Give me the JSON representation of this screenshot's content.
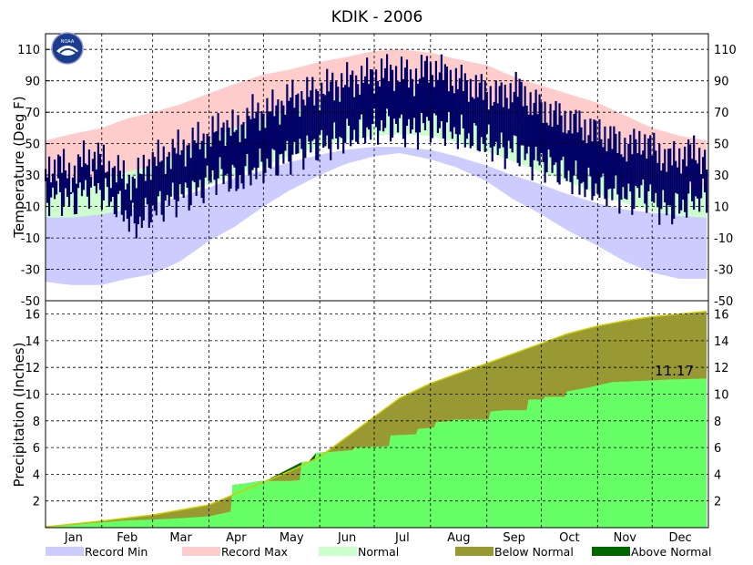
{
  "chart_data": [
    {
      "type": "bar",
      "title": "KDIK - 2006",
      "ylabel": "Temperature (Deg F)",
      "ylim": [
        -50,
        120
      ],
      "yticks": [
        -50,
        -30,
        -10,
        10,
        30,
        50,
        70,
        90,
        110
      ],
      "months": [
        "Jan",
        "Feb",
        "Mar",
        "Apr",
        "May",
        "Jun",
        "Jul",
        "Aug",
        "Sep",
        "Oct",
        "Nov",
        "Dec"
      ],
      "month_start_days": [
        1,
        32,
        60,
        91,
        121,
        152,
        182,
        213,
        244,
        274,
        305,
        335
      ],
      "series": [
        {
          "name": "Record Min",
          "color": "#ccccff",
          "x": [
            1,
            15,
            32,
            46,
            60,
            75,
            91,
            105,
            121,
            135,
            152,
            166,
            182,
            196,
            213,
            227,
            244,
            258,
            274,
            288,
            305,
            320,
            335,
            350,
            365
          ],
          "low": [
            -38,
            -40,
            -40,
            -36,
            -33,
            -25,
            -12,
            -3,
            10,
            20,
            30,
            37,
            42,
            44,
            40,
            35,
            26,
            15,
            5,
            -5,
            -15,
            -25,
            -32,
            -36,
            -36
          ],
          "high": [
            5,
            5,
            6,
            8,
            12,
            16,
            22,
            28,
            33,
            38,
            43,
            46,
            48,
            48,
            46,
            42,
            36,
            30,
            24,
            18,
            12,
            8,
            6,
            5,
            5
          ]
        },
        {
          "name": "Record Max",
          "color": "#ffcccc",
          "x": [
            1,
            15,
            32,
            46,
            60,
            75,
            91,
            105,
            121,
            135,
            152,
            166,
            182,
            196,
            213,
            227,
            244,
            258,
            274,
            288,
            305,
            320,
            335,
            350,
            365
          ],
          "high": [
            52,
            56,
            60,
            66,
            70,
            75,
            82,
            88,
            94,
            97,
            102,
            105,
            109,
            110,
            108,
            104,
            100,
            93,
            87,
            82,
            76,
            68,
            60,
            55,
            52
          ]
        },
        {
          "name": "Normal",
          "color": "#ccffcc",
          "x": [
            1,
            15,
            32,
            46,
            60,
            75,
            91,
            105,
            121,
            135,
            152,
            166,
            182,
            196,
            213,
            227,
            244,
            258,
            274,
            288,
            305,
            320,
            335,
            350,
            365
          ],
          "low": [
            3,
            3,
            5,
            8,
            12,
            18,
            24,
            30,
            36,
            42,
            48,
            52,
            55,
            56,
            55,
            51,
            45,
            39,
            32,
            26,
            18,
            12,
            7,
            4,
            3
          ],
          "high": [
            22,
            25,
            28,
            32,
            36,
            44,
            52,
            60,
            66,
            71,
            76,
            80,
            84,
            85,
            84,
            80,
            74,
            66,
            58,
            50,
            40,
            32,
            26,
            23,
            22
          ]
        },
        {
          "name": "Actual (daily range)",
          "color": "#000066",
          "x": [
            1,
            8,
            15,
            22,
            29,
            36,
            43,
            50,
            57,
            64,
            71,
            78,
            85,
            92,
            99,
            106,
            113,
            120,
            127,
            134,
            141,
            148,
            155,
            162,
            169,
            176,
            183,
            190,
            197,
            204,
            211,
            218,
            225,
            232,
            239,
            246,
            253,
            260,
            267,
            274,
            281,
            288,
            295,
            302,
            309,
            316,
            323,
            330,
            337,
            344,
            351,
            358,
            365
          ],
          "low": [
            15,
            18,
            12,
            20,
            22,
            15,
            8,
            -2,
            5,
            10,
            15,
            18,
            20,
            28,
            30,
            25,
            32,
            35,
            38,
            42,
            45,
            48,
            50,
            52,
            55,
            58,
            60,
            62,
            60,
            58,
            62,
            60,
            58,
            55,
            52,
            50,
            45,
            48,
            40,
            38,
            35,
            30,
            25,
            22,
            20,
            18,
            15,
            20,
            12,
            8,
            10,
            15,
            15
          ],
          "high": [
            32,
            38,
            30,
            40,
            42,
            35,
            30,
            25,
            38,
            40,
            45,
            48,
            52,
            55,
            62,
            58,
            68,
            70,
            72,
            78,
            80,
            82,
            85,
            88,
            90,
            92,
            94,
            96,
            95,
            92,
            98,
            96,
            92,
            88,
            85,
            82,
            80,
            86,
            78,
            72,
            68,
            65,
            62,
            58,
            56,
            50,
            48,
            52,
            45,
            40,
            42,
            45,
            40
          ]
        }
      ]
    },
    {
      "type": "area",
      "ylabel": "Precipitation (Inches)",
      "ylim": [
        0,
        17
      ],
      "yticks": [
        2,
        4,
        6,
        8,
        10,
        12,
        14,
        16
      ],
      "annotation": "11.17",
      "series": [
        {
          "name": "Normal (cumulative)",
          "color": "#999933",
          "x": [
            1,
            32,
            60,
            91,
            105,
            121,
            135,
            152,
            166,
            182,
            196,
            213,
            227,
            244,
            258,
            274,
            288,
            305,
            320,
            335,
            350,
            365
          ],
          "values": [
            0.05,
            0.5,
            0.95,
            1.7,
            2.5,
            3.4,
            4.2,
            5.3,
            6.7,
            8.3,
            9.7,
            10.8,
            11.5,
            12.3,
            13.0,
            13.8,
            14.5,
            15.1,
            15.5,
            15.8,
            16.0,
            16.2
          ]
        },
        {
          "name": "Actual (cumulative)",
          "color": "#66ff66",
          "x": [
            1,
            15,
            32,
            46,
            60,
            75,
            91,
            103,
            104,
            111,
            115,
            120,
            135,
            141,
            142,
            149,
            150,
            160,
            170,
            171,
            190,
            191,
            205,
            206,
            215,
            216,
            225,
            226,
            240,
            245,
            246,
            250,
            254,
            260,
            266,
            267,
            275,
            276,
            287,
            288,
            300,
            313,
            330,
            345,
            365
          ],
          "values": [
            0.05,
            0.2,
            0.4,
            0.55,
            0.6,
            0.7,
            0.85,
            1.2,
            3.2,
            3.3,
            3.4,
            3.5,
            3.5,
            3.55,
            4.9,
            5.0,
            5.6,
            5.7,
            5.8,
            6.0,
            6.1,
            6.9,
            7.0,
            7.4,
            7.5,
            7.9,
            8.0,
            8.1,
            8.1,
            8.1,
            8.7,
            8.75,
            8.8,
            8.8,
            8.8,
            9.6,
            9.6,
            9.8,
            9.8,
            10.2,
            10.5,
            10.9,
            11.0,
            11.1,
            11.17
          ]
        }
      ]
    }
  ],
  "legend": [
    {
      "label": "Record Min",
      "color": "#ccccff"
    },
    {
      "label": "Record Max",
      "color": "#ffcccc"
    },
    {
      "label": "Normal",
      "color": "#ccffcc"
    },
    {
      "label": "Below Normal",
      "color": "#999933"
    },
    {
      "label": "Above Normal",
      "color": "#006600"
    }
  ],
  "logo": {
    "text": "NOAA",
    "icon": "noaa-logo-icon"
  }
}
